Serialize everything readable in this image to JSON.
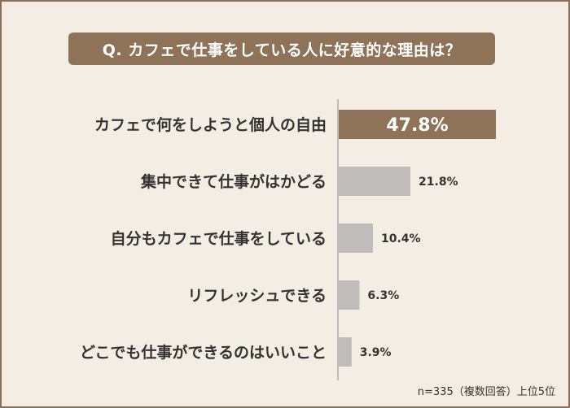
{
  "question": "Q. カフェで仕事をしている人に好意的な理由は？",
  "note": "n=335（複数回答）上位5位",
  "colors": {
    "frame_border": "#8a7058",
    "background": "#f4ede3",
    "accent": "#8e7358",
    "bar_gray": "#bfbdbb",
    "axis": "#bdbdbd"
  },
  "chart_data": {
    "type": "bar",
    "orientation": "horizontal",
    "title": "Q. カフェで仕事をしている人に好意的な理由は？",
    "categories": [
      "カフェで何をしようと個人の自由",
      "集中できて仕事がはかどる",
      "自分もカフェで仕事をしている",
      "リフレッシュできる",
      "どこでも仕事ができるのはいいこと"
    ],
    "values": [
      47.8,
      21.8,
      10.4,
      6.3,
      3.9
    ],
    "value_labels": [
      "47.8%",
      "21.8%",
      "10.4%",
      "6.3%",
      "3.9%"
    ],
    "unit": "%",
    "xlim": [
      0,
      47.8
    ],
    "grid": false,
    "legend": "none"
  }
}
